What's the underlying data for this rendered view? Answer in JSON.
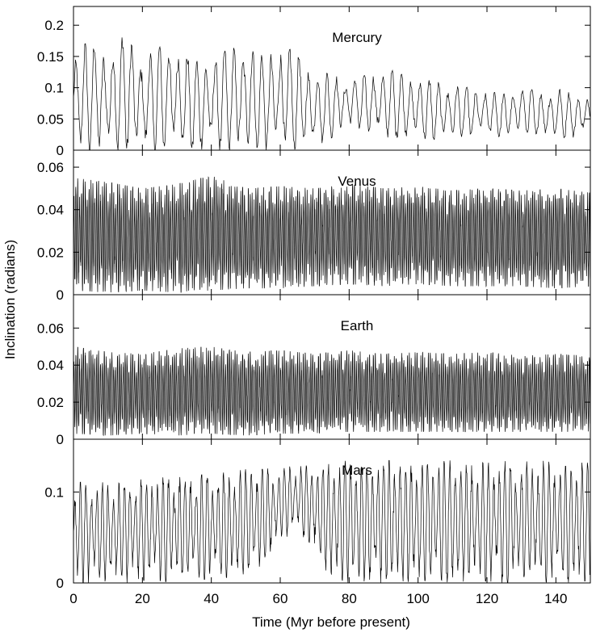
{
  "figure": {
    "ylabel": "Inclination (radians)",
    "xlabel": "Time (Myr before present)"
  },
  "chart_data": [
    {
      "type": "line",
      "title": "Mercury",
      "xlabel": "Time (Myr before present)",
      "ylabel": "Inclination (radians)",
      "xlim": [
        0,
        150
      ],
      "ylim": [
        0,
        0.23
      ],
      "x_ticks": [
        0,
        20,
        40,
        60,
        80,
        100,
        120,
        140
      ],
      "x_tick_labels": [
        "0",
        "20",
        "40",
        "60",
        "80",
        "100",
        "120",
        "140"
      ],
      "y_ticks": [
        0,
        0.05,
        0.1,
        0.15,
        0.2
      ],
      "y_tick_labels": [
        "0",
        "0.05",
        "0.1",
        "0.15",
        "0.2"
      ],
      "grid": false,
      "series": [
        {
          "x": [
            0,
            5,
            10,
            15,
            20,
            25,
            30,
            35,
            40,
            45,
            50,
            55,
            60,
            65,
            70,
            75,
            80,
            85,
            90,
            95,
            100,
            105,
            110,
            115,
            120,
            125,
            130,
            135,
            140,
            145,
            150
          ],
          "upper": [
            0.16,
            0.175,
            0.16,
            0.185,
            0.155,
            0.165,
            0.175,
            0.14,
            0.155,
            0.16,
            0.175,
            0.15,
            0.17,
            0.155,
            0.13,
            0.12,
            0.115,
            0.12,
            0.13,
            0.125,
            0.115,
            0.11,
            0.105,
            0.1,
            0.095,
            0.09,
            0.1,
            0.095,
            0.1,
            0.09,
            0.085
          ],
          "lower": [
            0.0,
            0.0,
            0.0,
            0.0,
            0.0,
            0.0,
            0.0,
            0.0,
            0.0,
            0.0,
            0.0,
            0.0,
            0.0,
            0.0,
            0.005,
            0.02,
            0.04,
            0.03,
            0.02,
            0.02,
            0.02,
            0.015,
            0.02,
            0.02,
            0.025,
            0.02,
            0.03,
            0.02,
            0.02,
            0.02,
            0.03
          ],
          "mean": [
            0.1,
            0.11,
            0.1,
            0.11,
            0.1,
            0.1,
            0.1,
            0.09,
            0.095,
            0.1,
            0.105,
            0.095,
            0.105,
            0.1,
            0.09,
            0.085,
            0.08,
            0.08,
            0.08,
            0.075,
            0.07,
            0.07,
            0.065,
            0.065,
            0.06,
            0.06,
            0.065,
            0.06,
            0.06,
            0.06,
            0.06
          ],
          "oscillation_period": 2.7
        }
      ]
    },
    {
      "type": "line",
      "title": "Venus",
      "xlabel": "Time (Myr before present)",
      "ylabel": "Inclination (radians)",
      "xlim": [
        0,
        150
      ],
      "ylim": [
        0,
        0.068
      ],
      "x_ticks": [
        0,
        20,
        40,
        60,
        80,
        100,
        120,
        140
      ],
      "x_tick_labels": [
        "0",
        "20",
        "40",
        "60",
        "80",
        "100",
        "120",
        "140"
      ],
      "y_ticks": [
        0,
        0.02,
        0.04,
        0.06
      ],
      "y_tick_labels": [
        "0",
        "0.02",
        "0.04",
        "0.06"
      ],
      "grid": false,
      "series": [
        {
          "x": [
            0,
            10,
            20,
            30,
            40,
            50,
            60,
            70,
            80,
            90,
            100,
            110,
            120,
            130,
            140,
            150
          ],
          "upper": [
            0.055,
            0.053,
            0.05,
            0.052,
            0.056,
            0.05,
            0.051,
            0.05,
            0.052,
            0.05,
            0.051,
            0.049,
            0.05,
            0.049,
            0.05,
            0.048
          ],
          "lower": [
            0.002,
            0.001,
            0.002,
            0.001,
            0.002,
            0.003,
            0.003,
            0.004,
            0.005,
            0.004,
            0.005,
            0.004,
            0.004,
            0.004,
            0.003,
            0.004
          ],
          "mean": [
            0.022,
            0.024,
            0.023,
            0.024,
            0.023,
            0.024,
            0.025,
            0.026,
            0.027,
            0.027,
            0.027,
            0.027,
            0.027,
            0.027,
            0.027,
            0.027
          ],
          "oscillation_period": 0.55
        }
      ]
    },
    {
      "type": "line",
      "title": "Earth",
      "xlabel": "Time (Myr before present)",
      "ylabel": "Inclination (radians)",
      "xlim": [
        0,
        150
      ],
      "ylim": [
        0,
        0.078
      ],
      "x_ticks": [
        0,
        20,
        40,
        60,
        80,
        100,
        120,
        140
      ],
      "x_tick_labels": [
        "0",
        "20",
        "40",
        "60",
        "80",
        "100",
        "120",
        "140"
      ],
      "y_ticks": [
        0,
        0.02,
        0.04,
        0.06
      ],
      "y_tick_labels": [
        "0",
        "0.02",
        "0.04",
        "0.06"
      ],
      "grid": false,
      "series": [
        {
          "x": [
            0,
            10,
            20,
            30,
            40,
            50,
            60,
            70,
            80,
            90,
            100,
            110,
            120,
            130,
            140,
            150
          ],
          "upper": [
            0.05,
            0.047,
            0.046,
            0.049,
            0.05,
            0.047,
            0.048,
            0.046,
            0.048,
            0.046,
            0.047,
            0.046,
            0.047,
            0.045,
            0.046,
            0.045
          ],
          "lower": [
            0.003,
            0.002,
            0.003,
            0.002,
            0.003,
            0.002,
            0.003,
            0.003,
            0.004,
            0.004,
            0.004,
            0.004,
            0.004,
            0.004,
            0.004,
            0.004
          ],
          "mean": [
            0.02,
            0.021,
            0.02,
            0.021,
            0.021,
            0.022,
            0.021,
            0.022,
            0.022,
            0.022,
            0.022,
            0.022,
            0.022,
            0.022,
            0.022,
            0.022
          ],
          "oscillation_period": 0.55
        }
      ]
    },
    {
      "type": "line",
      "title": "Mars",
      "xlabel": "Time (Myr before present)",
      "ylabel": "Inclination (radians)",
      "xlim": [
        0,
        150
      ],
      "ylim": [
        0,
        0.158
      ],
      "x_ticks": [
        0,
        20,
        40,
        60,
        80,
        100,
        120,
        140
      ],
      "x_tick_labels": [
        "0",
        "20",
        "40",
        "60",
        "80",
        "100",
        "120",
        "140"
      ],
      "y_ticks": [
        0,
        0.1
      ],
      "y_tick_labels": [
        "0",
        "0.1"
      ],
      "grid": false,
      "series": [
        {
          "x": [
            0,
            5,
            10,
            15,
            20,
            25,
            30,
            35,
            40,
            45,
            50,
            55,
            60,
            65,
            70,
            75,
            80,
            85,
            90,
            95,
            100,
            105,
            110,
            115,
            120,
            125,
            130,
            135,
            140,
            145,
            150
          ],
          "upper": [
            0.11,
            0.112,
            0.11,
            0.112,
            0.114,
            0.116,
            0.116,
            0.118,
            0.12,
            0.122,
            0.125,
            0.125,
            0.128,
            0.128,
            0.13,
            0.132,
            0.135,
            0.133,
            0.135,
            0.134,
            0.136,
            0.133,
            0.135,
            0.133,
            0.132,
            0.134,
            0.133,
            0.135,
            0.132,
            0.133,
            0.132
          ],
          "lower": [
            0.0,
            0.0,
            0.002,
            0.0,
            0.003,
            0.0,
            0.004,
            0.002,
            0.005,
            0.006,
            0.01,
            0.02,
            0.045,
            0.06,
            0.03,
            0.005,
            0.0,
            0.002,
            0.0,
            0.002,
            0.0,
            0.002,
            0.0,
            0.002,
            0.002,
            0.0,
            0.002,
            0.0,
            0.002,
            0.0,
            0.003
          ],
          "mean": [
            0.07,
            0.072,
            0.072,
            0.074,
            0.075,
            0.076,
            0.077,
            0.078,
            0.08,
            0.082,
            0.085,
            0.088,
            0.09,
            0.092,
            0.088,
            0.085,
            0.085,
            0.085,
            0.086,
            0.086,
            0.087,
            0.086,
            0.087,
            0.086,
            0.086,
            0.087,
            0.086,
            0.087,
            0.086,
            0.086,
            0.086
          ],
          "oscillation_period": 1.6
        }
      ]
    }
  ]
}
